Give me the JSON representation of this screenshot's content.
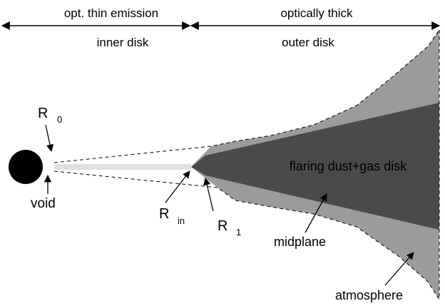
{
  "header": {
    "left_title": "opt. thin emission",
    "right_title": "optically thick",
    "left_region": "inner disk",
    "right_region": "outer disk"
  },
  "labels": {
    "r0_main": "R",
    "r0_sub": "0",
    "void": "void",
    "rin_main": "R",
    "rin_sub": "in",
    "r1_main": "R",
    "r1_sub": "1",
    "disk": "flaring dust+gas disk",
    "midplane": "midplane",
    "atmosphere": "atmosphere"
  },
  "colors": {
    "star": "#000000",
    "inner_disk": "#e0e0e0",
    "atmosphere": "#9b9b9b",
    "midplane_disk": "#4a4a4a",
    "lines": "#000000",
    "background": "#ffffff"
  }
}
